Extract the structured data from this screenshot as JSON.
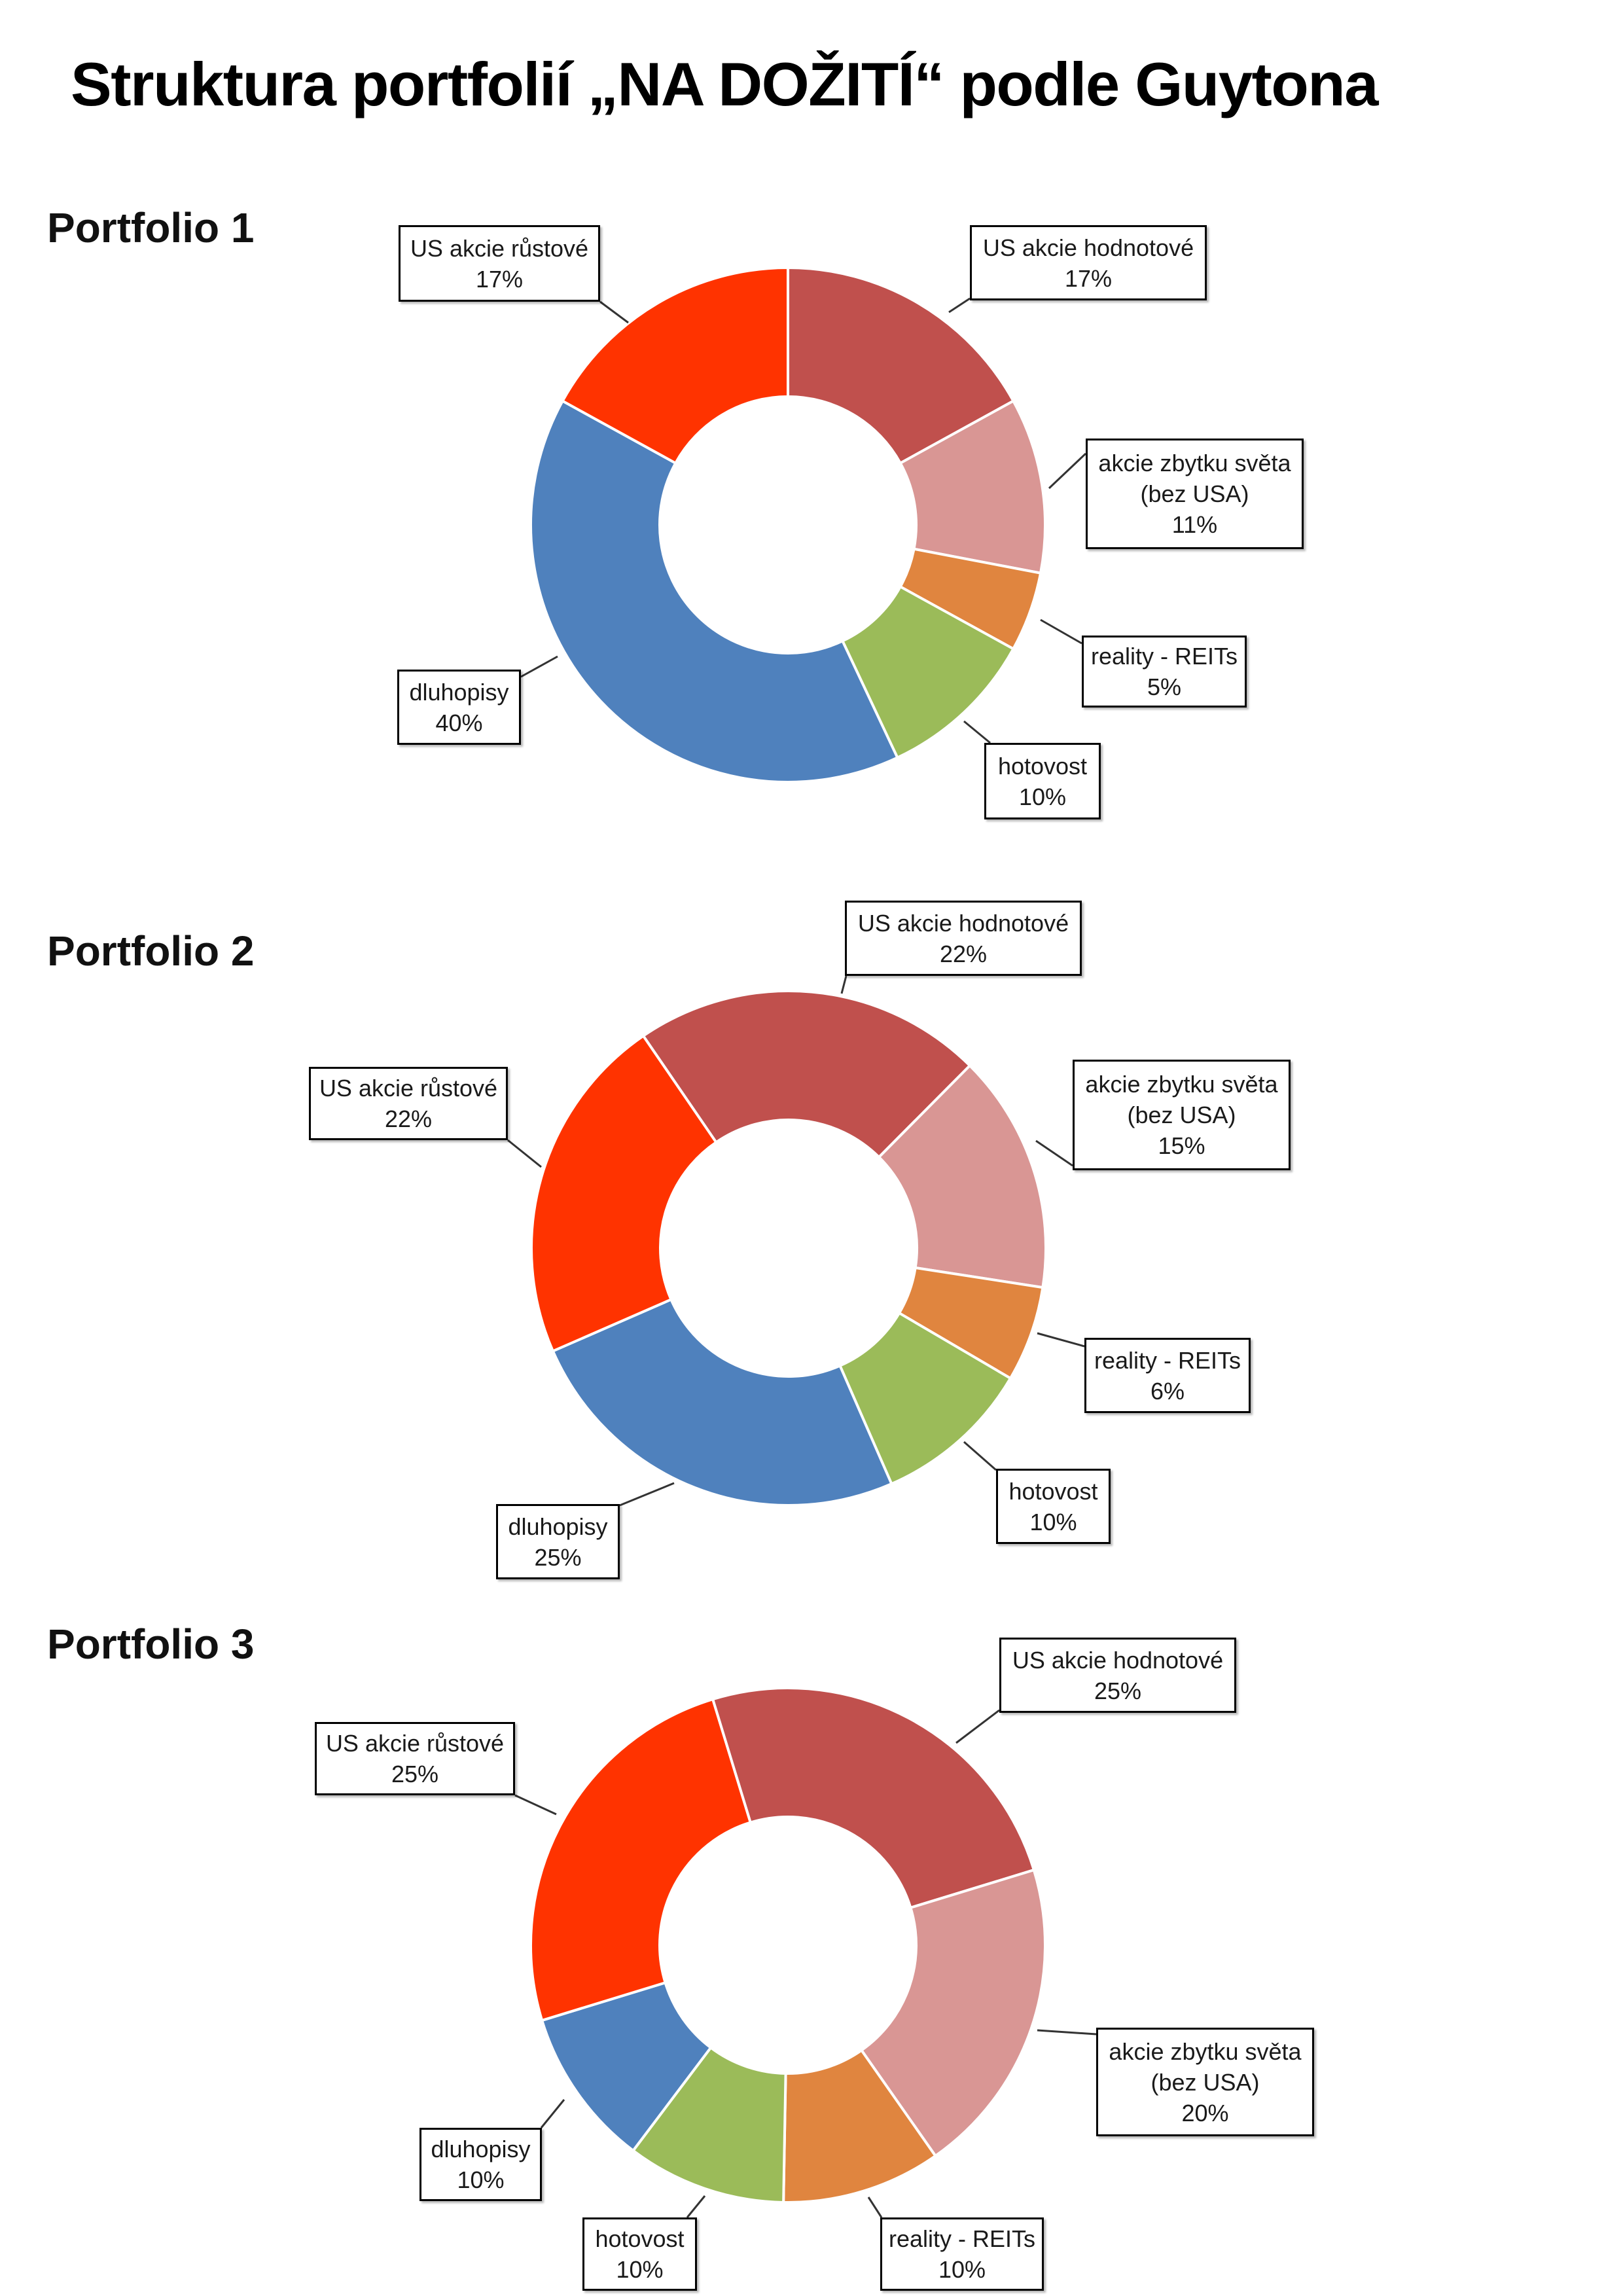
{
  "title": "Struktura portfolií „NA DOŽITÍ“ podle Guytona",
  "chart_data": [
    {
      "type": "pie",
      "donut": true,
      "title": "Portfolio 1",
      "categories": [
        "US akcie hodnotové",
        "akcie zbytku světa (bez USA)",
        "reality - REITs",
        "hotovost",
        "dluhopisy",
        "US akcie růstové"
      ],
      "values": [
        17,
        11,
        5,
        10,
        40,
        17
      ],
      "data_labels": [
        "17%",
        "11%",
        "5%",
        "10%",
        "40%",
        "17%"
      ],
      "colors": [
        "#C0504D",
        "#D99694",
        "#E0853F",
        "#9BBB59",
        "#4F81BD",
        "#FF3300"
      ],
      "legend": "none"
    },
    {
      "type": "pie",
      "donut": true,
      "title": "Portfolio 2",
      "categories": [
        "US akcie hodnotové",
        "akcie zbytku světa (bez USA)",
        "reality - REITs",
        "hotovost",
        "dluhopisy",
        "US akcie růstové"
      ],
      "values": [
        22,
        15,
        6,
        10,
        25,
        22
      ],
      "data_labels": [
        "22%",
        "15%",
        "6%",
        "10%",
        "25%",
        "22%"
      ],
      "colors": [
        "#C0504D",
        "#D99694",
        "#E0853F",
        "#9BBB59",
        "#4F81BD",
        "#FF3300"
      ],
      "legend": "none"
    },
    {
      "type": "pie",
      "donut": true,
      "title": "Portfolio 3",
      "categories": [
        "US akcie hodnotové",
        "akcie zbytku světa (bez USA)",
        "reality - REITs",
        "hotovost",
        "dluhopisy",
        "US akcie růstové"
      ],
      "values": [
        25,
        20,
        10,
        10,
        10,
        25
      ],
      "data_labels": [
        "25%",
        "20%",
        "10%",
        "10%",
        "10%",
        "25%"
      ],
      "colors": [
        "#C0504D",
        "#D99694",
        "#E0853F",
        "#9BBB59",
        "#4F81BD",
        "#FF3300"
      ],
      "legend": "none"
    }
  ]
}
